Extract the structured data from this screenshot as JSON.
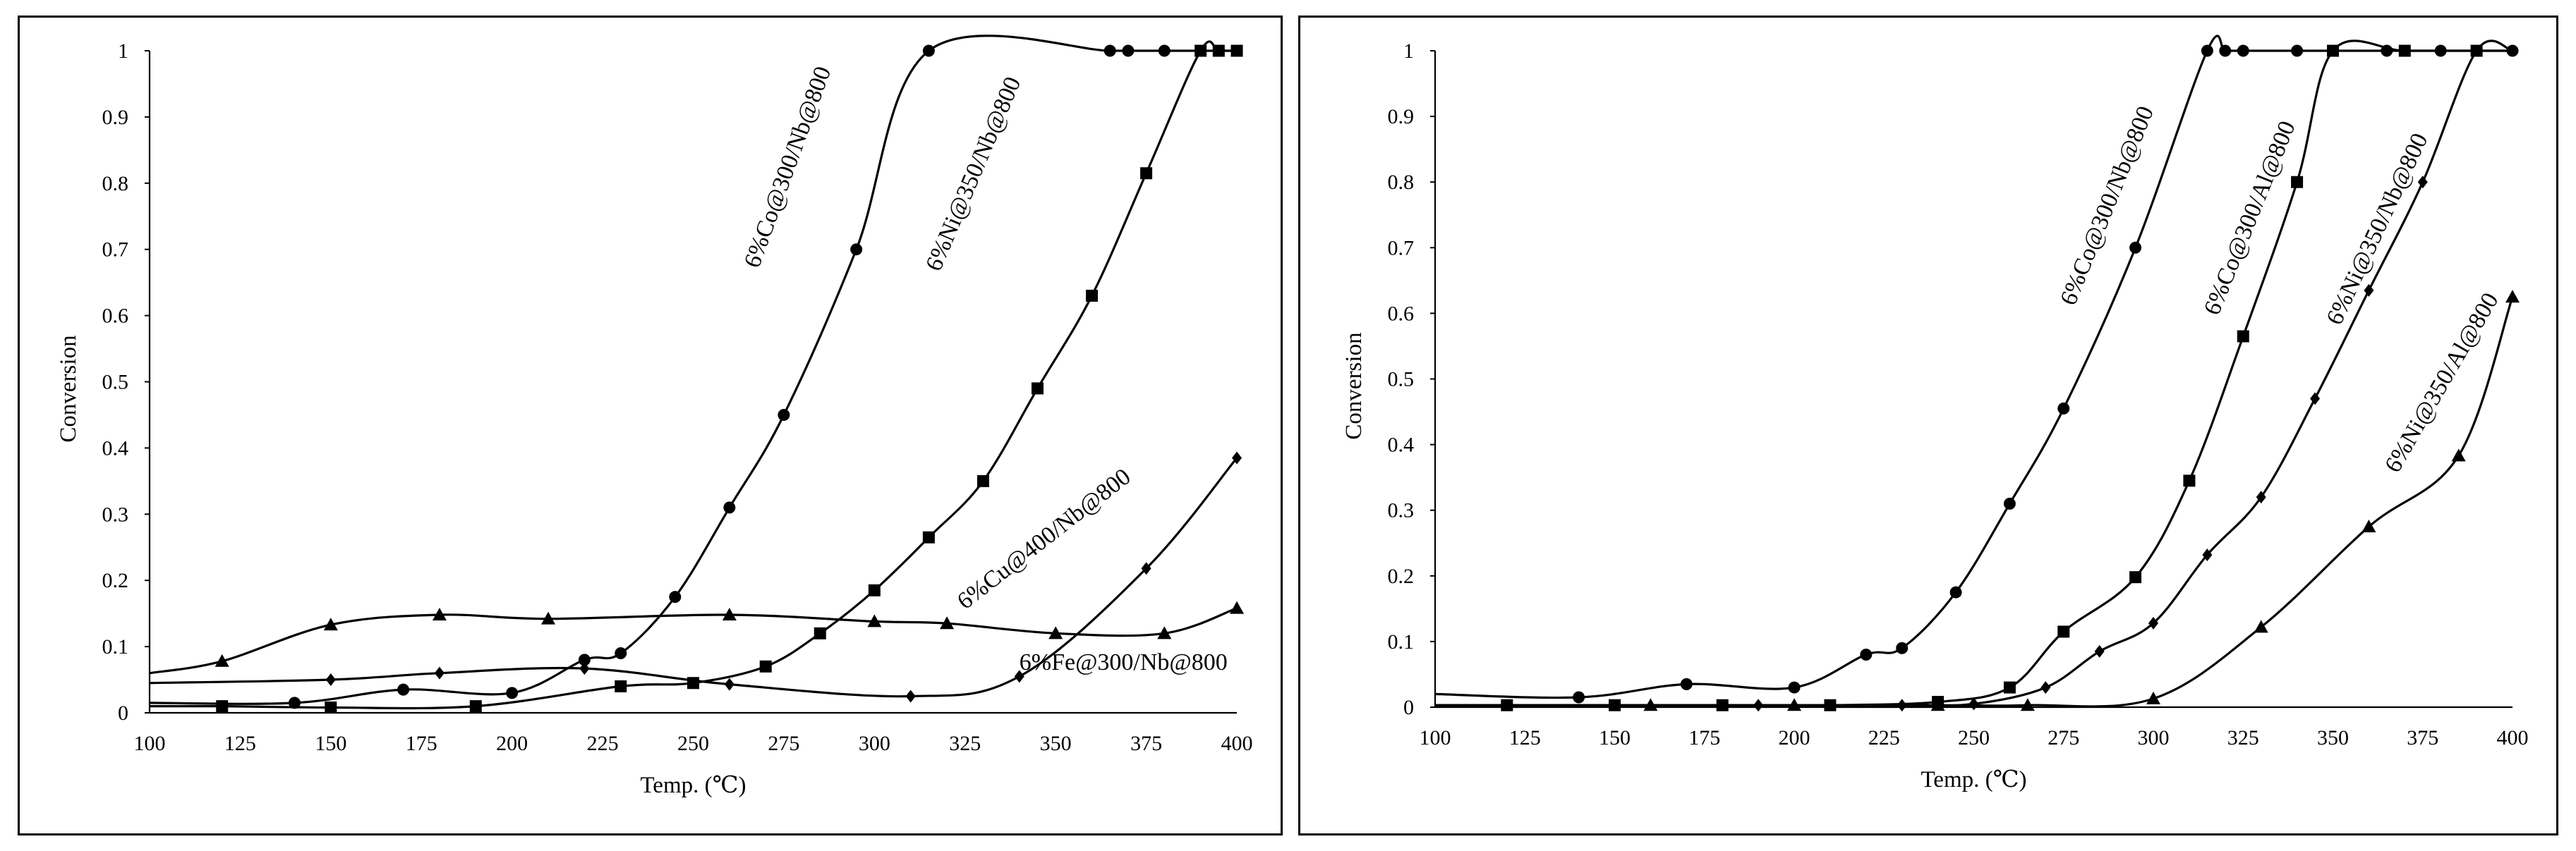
{
  "chart_data": [
    {
      "type": "line",
      "title": "",
      "xlabel": "Temp. (℃)",
      "ylabel": "Conversion",
      "xlim": [
        100,
        400
      ],
      "ylim": [
        0,
        1
      ],
      "xticks": [
        "100",
        "125",
        "150",
        "175",
        "200",
        "225",
        "250",
        "275",
        "300",
        "325",
        "350",
        "375",
        "400"
      ],
      "yticks": [
        "0",
        "0.1",
        "0.2",
        "0.3",
        "0.4",
        "0.5",
        "0.6",
        "0.7",
        "0.8",
        "0.9",
        "1"
      ],
      "grid": false,
      "legend": "inline labels",
      "series": [
        {
          "name": "6%Co@300/Nb@800",
          "marker": "circle",
          "x": [
            100,
            140,
            170,
            200,
            220,
            230,
            245,
            260,
            275,
            295,
            315,
            365,
            370,
            380,
            400
          ],
          "y": [
            0.015,
            0.015,
            0.035,
            0.03,
            0.08,
            0.09,
            0.175,
            0.31,
            0.45,
            0.7,
            1.0,
            1.0,
            1.0,
            1.0,
            1.0
          ],
          "markers": [
            false,
            true,
            true,
            true,
            true,
            true,
            true,
            true,
            true,
            true,
            true,
            true,
            true,
            true,
            false
          ]
        },
        {
          "name": "6%Ni@350/Nb@800",
          "marker": "square",
          "x": [
            100,
            120,
            150,
            190,
            230,
            250,
            270,
            285,
            300,
            315,
            330,
            345,
            360,
            375,
            390,
            395,
            400
          ],
          "y": [
            0.01,
            0.01,
            0.008,
            0.01,
            0.04,
            0.045,
            0.07,
            0.12,
            0.185,
            0.265,
            0.35,
            0.49,
            0.63,
            0.815,
            1.0,
            1.0,
            1.0
          ],
          "markers": [
            false,
            true,
            true,
            true,
            true,
            true,
            true,
            true,
            true,
            true,
            true,
            true,
            true,
            true,
            true,
            true,
            true
          ]
        },
        {
          "name": "6%Cu@400/Nb@800",
          "marker": "triangle",
          "x": [
            100,
            120,
            150,
            180,
            210,
            260,
            300,
            320,
            350,
            380,
            400
          ],
          "y": [
            0.06,
            0.078,
            0.133,
            0.148,
            0.142,
            0.148,
            0.138,
            0.135,
            0.12,
            0.12,
            0.158
          ],
          "markers": [
            false,
            true,
            true,
            true,
            true,
            true,
            true,
            true,
            true,
            true,
            true
          ]
        },
        {
          "name": "6%Fe@300/Nb@800",
          "marker": "diamond",
          "x": [
            100,
            150,
            180,
            220,
            260,
            310,
            340,
            375,
            400
          ],
          "y": [
            0.045,
            0.05,
            0.06,
            0.067,
            0.043,
            0.025,
            0.055,
            0.218,
            0.385
          ],
          "markers": [
            false,
            true,
            true,
            true,
            true,
            true,
            true,
            true,
            true
          ]
        }
      ],
      "annotations": [
        "6%Co@300/Nb@800",
        "6%Ni@350/Nb@800",
        "6%Cu@400/Nb@800",
        "6%Fe@300/Nb@800"
      ]
    },
    {
      "type": "line",
      "title": "",
      "xlabel": "Temp. (℃)",
      "ylabel": "Conversion",
      "xlim": [
        100,
        400
      ],
      "ylim": [
        0,
        1
      ],
      "xticks": [
        "100",
        "125",
        "150",
        "175",
        "200",
        "225",
        "250",
        "275",
        "300",
        "325",
        "350",
        "375",
        "400"
      ],
      "yticks": [
        "0",
        "0.1",
        "0.2",
        "0.3",
        "0.4",
        "0.5",
        "0.6",
        "0.7",
        "0.8",
        "0.9",
        "1"
      ],
      "grid": false,
      "legend": "inline labels",
      "series": [
        {
          "name": "6%Co@300/Nb@800",
          "marker": "circle",
          "x": [
            100,
            140,
            170,
            200,
            220,
            230,
            245,
            260,
            275,
            295,
            315,
            320,
            325,
            340,
            365,
            370,
            380,
            400
          ],
          "y": [
            0.02,
            0.015,
            0.035,
            0.03,
            0.08,
            0.09,
            0.175,
            0.31,
            0.455,
            0.7,
            1.0,
            1.0,
            1.0,
            1.0,
            1.0,
            1.0,
            1.0,
            1.0
          ],
          "markers": [
            false,
            true,
            true,
            true,
            true,
            true,
            true,
            true,
            true,
            true,
            true,
            true,
            true,
            true,
            true,
            false,
            true,
            true
          ]
        },
        {
          "name": "6%Co@300/Al@800",
          "marker": "square",
          "x": [
            100,
            120,
            150,
            180,
            210,
            240,
            260,
            275,
            295,
            310,
            325,
            340,
            350,
            370,
            390,
            400
          ],
          "y": [
            0.003,
            0.003,
            0.003,
            0.003,
            0.003,
            0.008,
            0.03,
            0.115,
            0.198,
            0.345,
            0.565,
            0.8,
            1.0,
            1.0,
            1.0,
            1.0
          ],
          "markers": [
            false,
            true,
            true,
            true,
            true,
            true,
            true,
            true,
            true,
            true,
            true,
            true,
            true,
            true,
            true,
            false
          ]
        },
        {
          "name": "6%Ni@350/Nb@800",
          "marker": "diamond",
          "x": [
            100,
            190,
            230,
            250,
            270,
            285,
            300,
            315,
            330,
            345,
            360,
            375,
            390,
            400
          ],
          "y": [
            0.003,
            0.003,
            0.003,
            0.005,
            0.03,
            0.085,
            0.128,
            0.232,
            0.32,
            0.47,
            0.635,
            0.8,
            1.0,
            1.0
          ],
          "markers": [
            false,
            true,
            true,
            true,
            true,
            true,
            true,
            true,
            true,
            true,
            true,
            true,
            false,
            false
          ]
        },
        {
          "name": "6%Ni@350/Al@800",
          "marker": "triangle",
          "x": [
            100,
            160,
            200,
            240,
            265,
            300,
            330,
            360,
            385,
            400
          ],
          "y": [
            0.003,
            0.003,
            0.003,
            0.003,
            0.003,
            0.013,
            0.122,
            0.275,
            0.383,
            0.625
          ],
          "markers": [
            false,
            true,
            true,
            true,
            true,
            true,
            true,
            true,
            true,
            true
          ]
        }
      ],
      "annotations": [
        "6%Co@300/Nb@800",
        "6%Co@300/Al@800",
        "6%Ni@350/Nb@800",
        "6%Ni@350/Al@800"
      ]
    }
  ]
}
